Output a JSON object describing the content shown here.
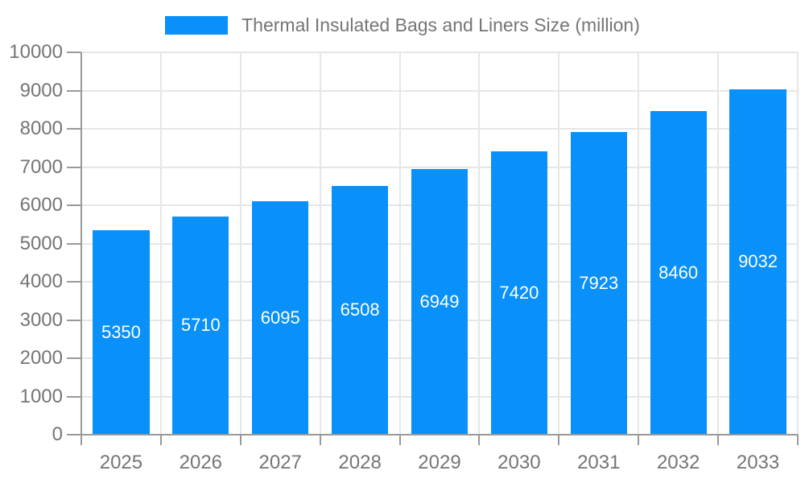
{
  "legend": {
    "label": "Thermal Insulated Bags and Liners Size (million)"
  },
  "chart_data": {
    "type": "bar",
    "title": "Thermal Insulated Bags and Liners Size (million)",
    "categories": [
      "2025",
      "2026",
      "2027",
      "2028",
      "2029",
      "2030",
      "2031",
      "2032",
      "2033"
    ],
    "values": [
      5350,
      5710,
      6095,
      6508,
      6949,
      7420,
      7923,
      8460,
      9032
    ],
    "value_labels": [
      "5350",
      "5710",
      "6095",
      "6508",
      "6949",
      "7420",
      "7923",
      "8460",
      "9032"
    ],
    "xlabel": "",
    "ylabel": "",
    "ylim": [
      0,
      10000
    ],
    "yticks": [
      0,
      1000,
      2000,
      3000,
      4000,
      5000,
      6000,
      7000,
      8000,
      9000,
      10000
    ],
    "grid": true,
    "legend_position": "top-center",
    "colors": {
      "bar": "#0990f9",
      "bar_value_text": "#ffffff",
      "axis": "#999999",
      "grid": "#e6e6e6",
      "text": "#757575",
      "background": "#ffffff"
    }
  }
}
